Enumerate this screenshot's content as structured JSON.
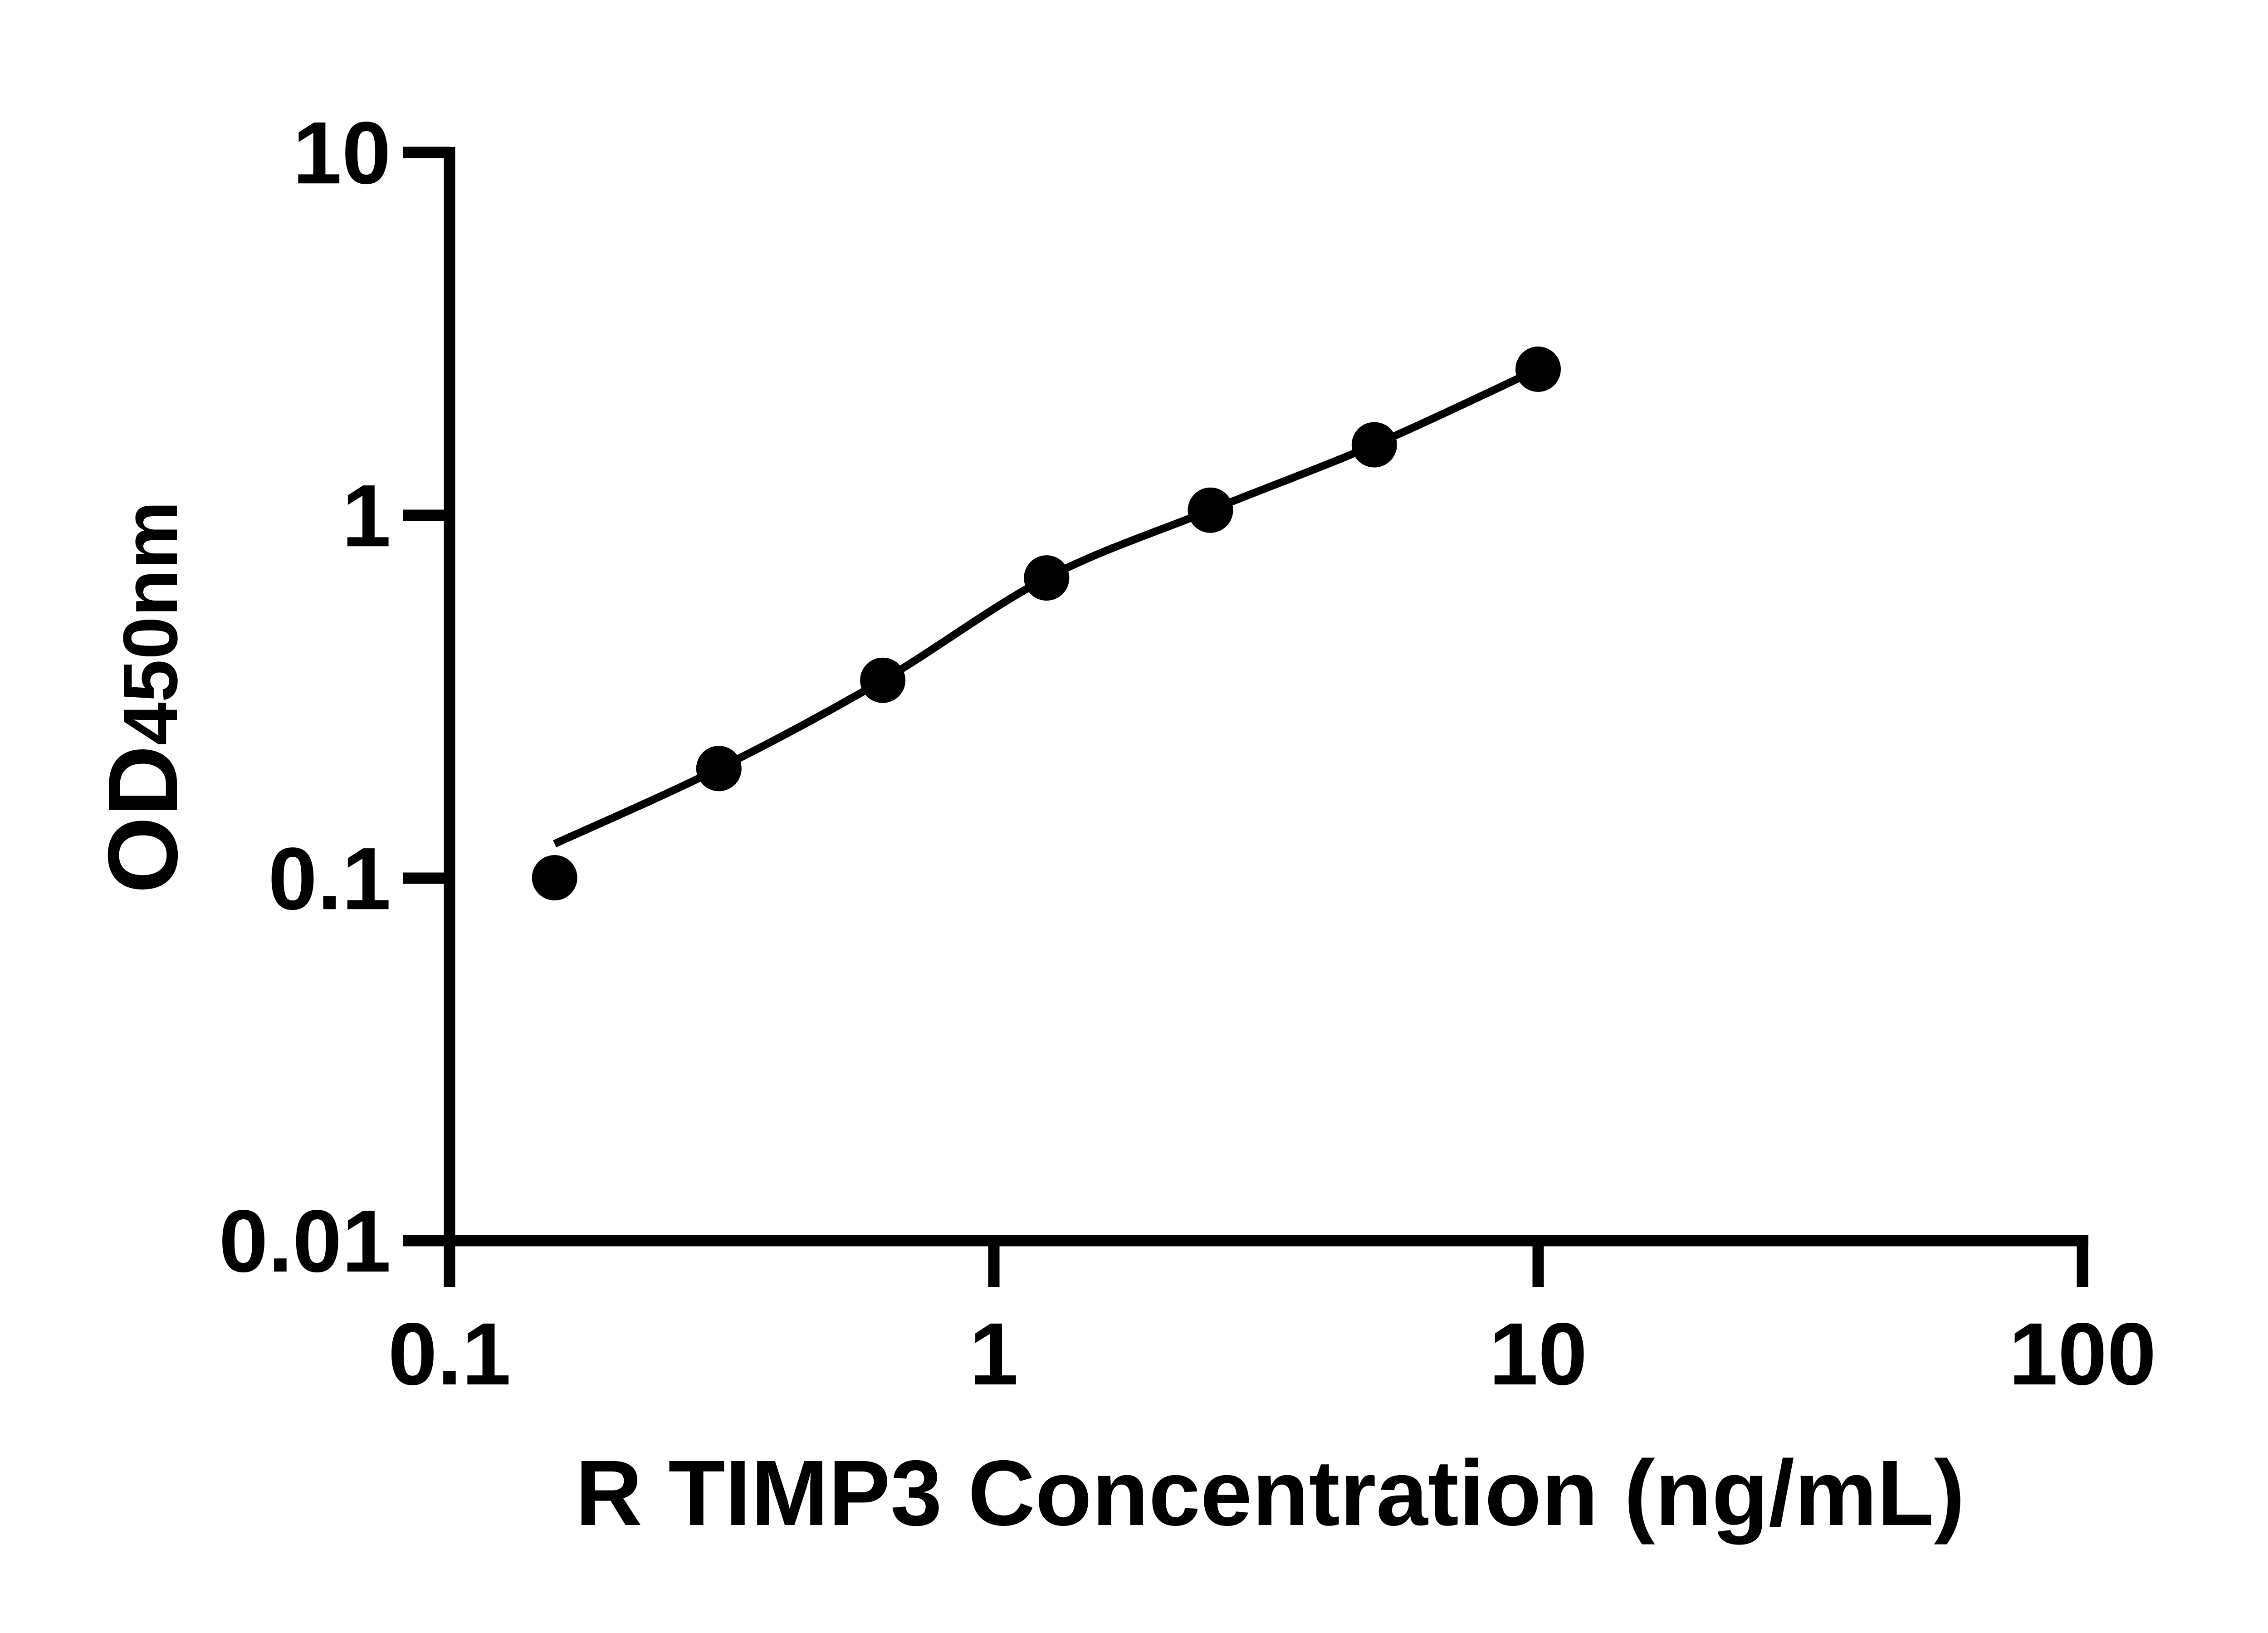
{
  "figure": {
    "background_color": "#ffffff",
    "foreground_color": "#000000",
    "description": "ELISA standard curve, log-log scatter plot with fitted line"
  },
  "axes": {
    "x": {
      "label": "R TIMP3 Concentration (ng/mL)",
      "tick_labels": [
        "0.1",
        "1",
        "10",
        "100"
      ],
      "scale": "log"
    },
    "y": {
      "label_main": "OD",
      "label_sub": "450nm",
      "tick_labels": [
        "10",
        "1",
        "0.1",
        "0.01"
      ],
      "scale": "log"
    }
  },
  "chart_data": {
    "type": "scatter",
    "title": "",
    "xlabel": "R TIMP3 Concentration (ng/mL)",
    "ylabel": "OD450nm",
    "x_scale": "log",
    "y_scale": "log",
    "xlim": [
      0.1,
      100
    ],
    "ylim": [
      0.01,
      10
    ],
    "x_ticks": [
      0.1,
      1,
      10,
      100
    ],
    "y_ticks": [
      0.01,
      0.1,
      1,
      10
    ],
    "grid": false,
    "legend": "none",
    "series": [
      {
        "name": "standard-points",
        "marker": "filled-circle",
        "color": "#000000",
        "x": [
          0.156,
          0.3125,
          0.625,
          1.25,
          2.5,
          5,
          10
        ],
        "y": [
          0.1,
          0.2,
          0.35,
          0.67,
          1.03,
          1.56,
          2.52
        ]
      }
    ],
    "fit_curve": {
      "name": "fitted-line",
      "color": "#000000",
      "note": "smooth fit; starts slightly above lowest point, ends at highest point",
      "points": [
        [
          0.156,
          0.124
        ],
        [
          0.3125,
          0.2
        ],
        [
          0.625,
          0.35
        ],
        [
          1.25,
          0.67
        ],
        [
          2.5,
          1.03
        ],
        [
          5,
          1.56
        ],
        [
          10,
          2.52
        ]
      ]
    }
  }
}
